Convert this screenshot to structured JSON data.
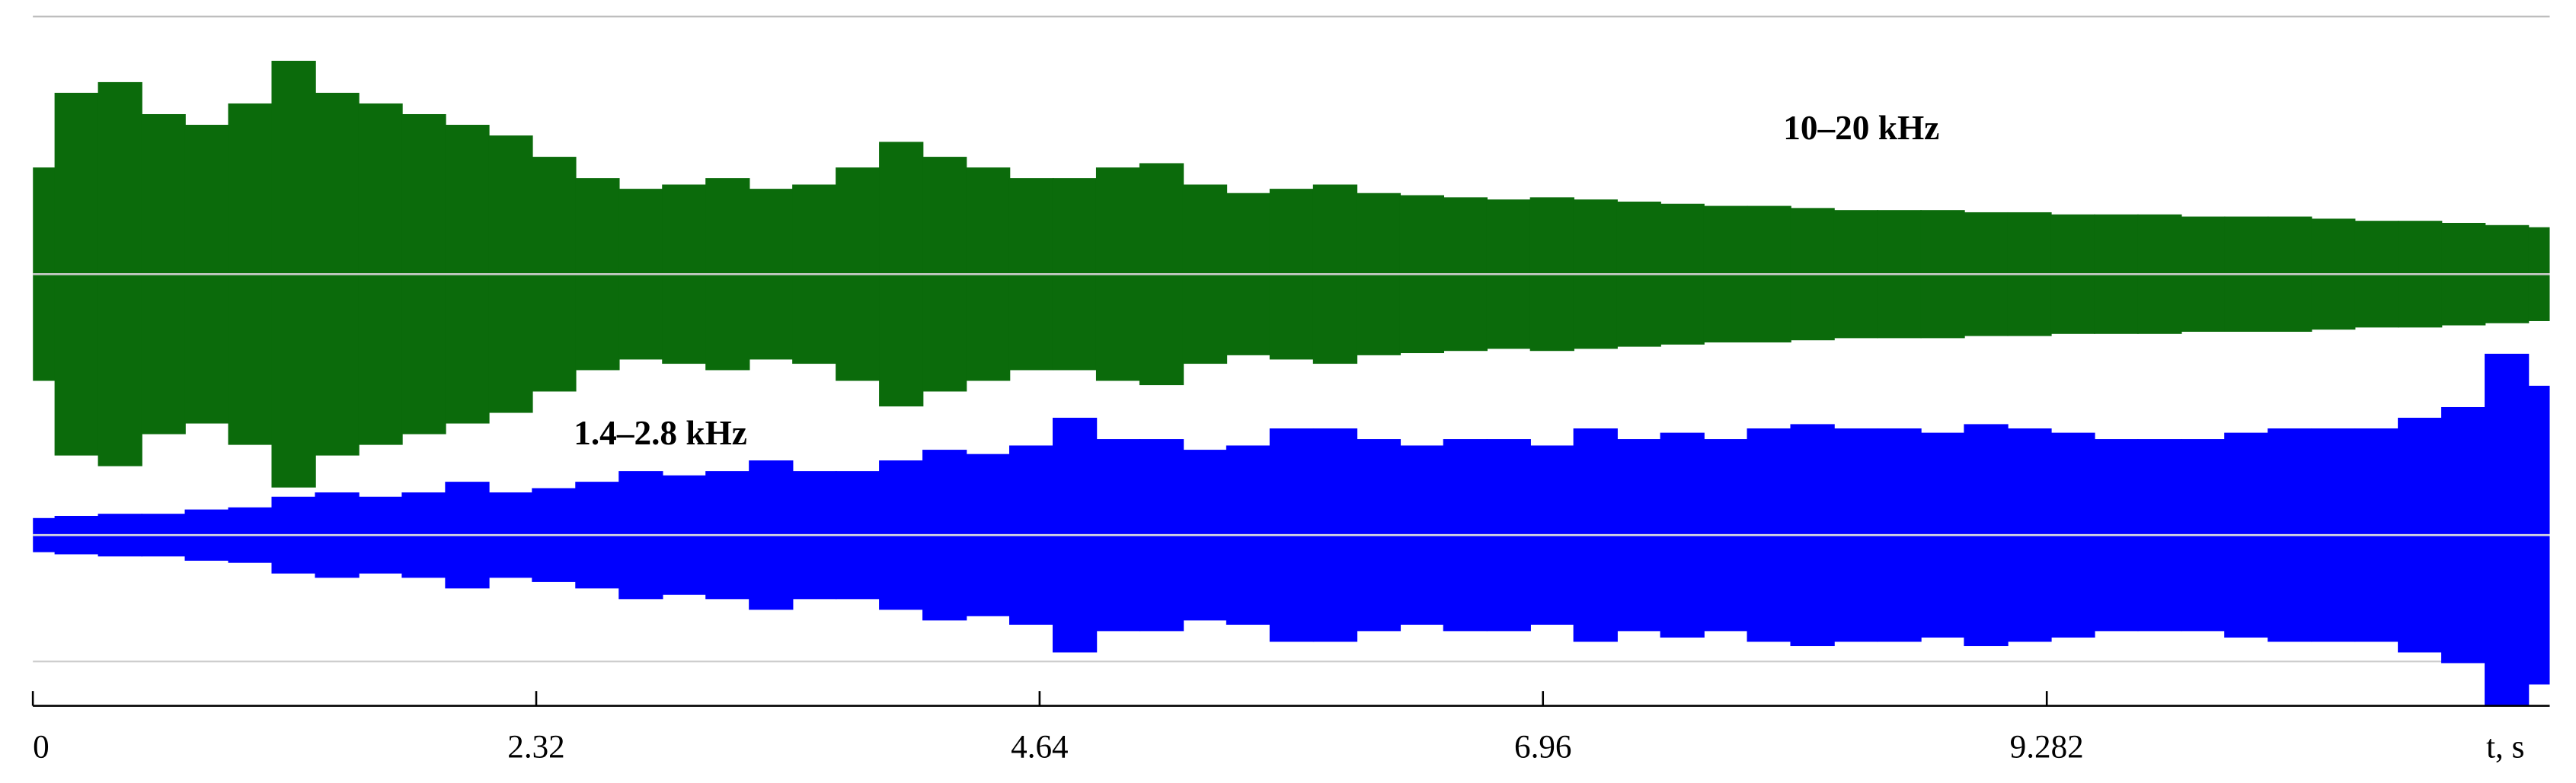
{
  "chart_data": {
    "type": "envelope",
    "x": [
      0,
      0.2,
      0.4,
      0.6,
      0.8,
      1.0,
      1.2,
      1.4,
      1.6,
      1.8,
      2.0,
      2.2,
      2.4,
      2.6,
      2.8,
      3.0,
      3.2,
      3.4,
      3.6,
      3.8,
      4.0,
      4.2,
      4.4,
      4.6,
      4.8,
      5.0,
      5.2,
      5.4,
      5.6,
      5.8,
      6.0,
      6.2,
      6.4,
      6.6,
      6.8,
      7.0,
      7.2,
      7.4,
      7.6,
      7.8,
      8.0,
      8.2,
      8.4,
      8.6,
      8.8,
      9.0,
      9.2,
      9.4,
      9.6,
      9.8,
      10.0,
      10.2,
      10.4,
      10.6,
      10.8,
      11.0,
      11.2,
      11.4,
      11.6
    ],
    "series": [
      {
        "name": "10–20 kHz",
        "color": "#0b6b0b",
        "values": [
          0.5,
          0.85,
          0.9,
          0.75,
          0.7,
          0.8,
          1.0,
          0.85,
          0.8,
          0.75,
          0.7,
          0.65,
          0.55,
          0.45,
          0.4,
          0.42,
          0.45,
          0.4,
          0.42,
          0.5,
          0.62,
          0.55,
          0.5,
          0.45,
          0.45,
          0.5,
          0.52,
          0.42,
          0.38,
          0.4,
          0.42,
          0.38,
          0.37,
          0.36,
          0.35,
          0.36,
          0.35,
          0.34,
          0.33,
          0.32,
          0.32,
          0.31,
          0.3,
          0.3,
          0.3,
          0.29,
          0.29,
          0.28,
          0.28,
          0.28,
          0.27,
          0.27,
          0.27,
          0.26,
          0.25,
          0.25,
          0.24,
          0.23,
          0.22
        ]
      },
      {
        "name": "1.4–2.8 kHz",
        "color": "#0000ff",
        "values": [
          0.08,
          0.09,
          0.1,
          0.1,
          0.12,
          0.13,
          0.18,
          0.2,
          0.18,
          0.2,
          0.25,
          0.2,
          0.22,
          0.25,
          0.3,
          0.28,
          0.3,
          0.35,
          0.3,
          0.3,
          0.35,
          0.4,
          0.38,
          0.42,
          0.55,
          0.45,
          0.45,
          0.4,
          0.42,
          0.5,
          0.5,
          0.45,
          0.42,
          0.45,
          0.45,
          0.42,
          0.5,
          0.45,
          0.48,
          0.45,
          0.5,
          0.52,
          0.5,
          0.5,
          0.48,
          0.52,
          0.5,
          0.48,
          0.45,
          0.45,
          0.45,
          0.48,
          0.5,
          0.5,
          0.5,
          0.55,
          0.6,
          0.85,
          0.7
        ]
      }
    ],
    "ylim": [
      0,
      1
    ],
    "xlim": [
      0,
      11.6
    ],
    "xticks": [
      0,
      2.32,
      4.64,
      6.96,
      9.282
    ],
    "xlabel": "t, s"
  }
}
